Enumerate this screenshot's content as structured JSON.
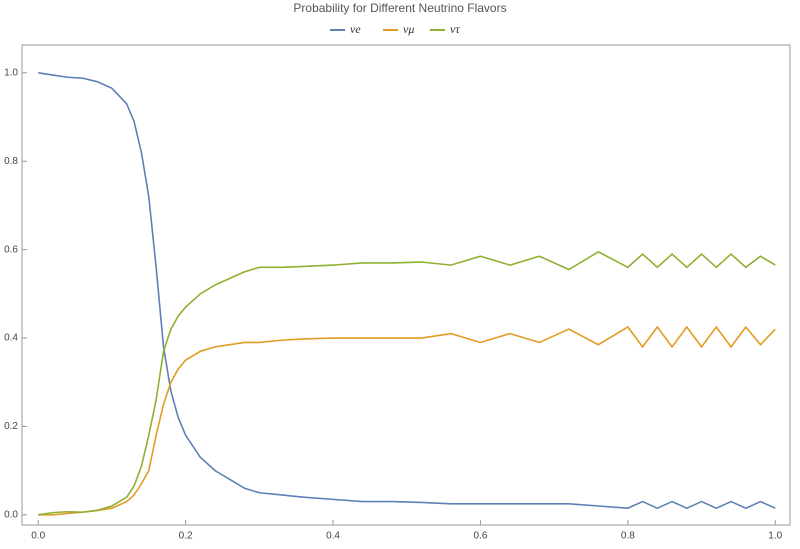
{
  "chart_data": {
    "type": "line",
    "title": "Probability for Different Neutrino Flavors",
    "x": [
      0,
      0.02,
      0.04,
      0.06,
      0.08,
      0.1,
      0.12,
      0.13,
      0.14,
      0.15,
      0.16,
      0.17,
      0.18,
      0.19,
      0.2,
      0.22,
      0.24,
      0.26,
      0.28,
      0.3,
      0.33,
      0.36,
      0.4,
      0.44,
      0.48,
      0.52,
      0.56,
      0.6,
      0.64,
      0.68,
      0.72,
      0.76,
      0.8,
      0.82,
      0.84,
      0.86,
      0.88,
      0.9,
      0.92,
      0.94,
      0.96,
      0.98,
      1.0
    ],
    "series": [
      {
        "name": "νe",
        "color": "#5e81b5",
        "values": [
          1.0,
          0.995,
          0.99,
          0.988,
          0.98,
          0.965,
          0.93,
          0.89,
          0.82,
          0.72,
          0.56,
          0.38,
          0.28,
          0.22,
          0.18,
          0.13,
          0.1,
          0.08,
          0.06,
          0.05,
          0.045,
          0.04,
          0.035,
          0.03,
          0.03,
          0.028,
          0.025,
          0.025,
          0.025,
          0.025,
          0.025,
          0.02,
          0.015,
          0.03,
          0.015,
          0.03,
          0.015,
          0.03,
          0.015,
          0.03,
          0.015,
          0.03,
          0.015
        ]
      },
      {
        "name": "νμ",
        "color": "#e19c24",
        "values": [
          0,
          0,
          0.003,
          0.006,
          0.01,
          0.015,
          0.03,
          0.045,
          0.07,
          0.1,
          0.18,
          0.25,
          0.3,
          0.33,
          0.35,
          0.37,
          0.38,
          0.385,
          0.39,
          0.39,
          0.395,
          0.398,
          0.4,
          0.4,
          0.4,
          0.4,
          0.41,
          0.39,
          0.41,
          0.39,
          0.42,
          0.385,
          0.425,
          0.38,
          0.425,
          0.38,
          0.425,
          0.38,
          0.425,
          0.38,
          0.425,
          0.385,
          0.42
        ]
      },
      {
        "name": "ντ",
        "color": "#8fb032",
        "values": [
          0,
          0.005,
          0.007,
          0.006,
          0.01,
          0.02,
          0.04,
          0.065,
          0.11,
          0.18,
          0.26,
          0.37,
          0.42,
          0.45,
          0.47,
          0.5,
          0.52,
          0.535,
          0.55,
          0.56,
          0.56,
          0.562,
          0.565,
          0.57,
          0.57,
          0.572,
          0.565,
          0.585,
          0.565,
          0.585,
          0.555,
          0.595,
          0.56,
          0.59,
          0.56,
          0.59,
          0.56,
          0.59,
          0.56,
          0.59,
          0.56,
          0.585,
          0.565
        ]
      }
    ],
    "xlim": [
      -0.022,
      1.02
    ],
    "ylim": [
      -0.023,
      1.063
    ],
    "xticks": [
      {
        "value": 0,
        "label": "0.0"
      },
      0.2,
      0.4,
      0.6,
      0.8,
      {
        "value": 1,
        "label": "1.0"
      }
    ],
    "yticks": [
      {
        "value": 0,
        "label": "0.0"
      },
      0.2,
      0.4,
      0.6,
      0.8,
      {
        "value": 1,
        "label": "1.0"
      }
    ]
  }
}
